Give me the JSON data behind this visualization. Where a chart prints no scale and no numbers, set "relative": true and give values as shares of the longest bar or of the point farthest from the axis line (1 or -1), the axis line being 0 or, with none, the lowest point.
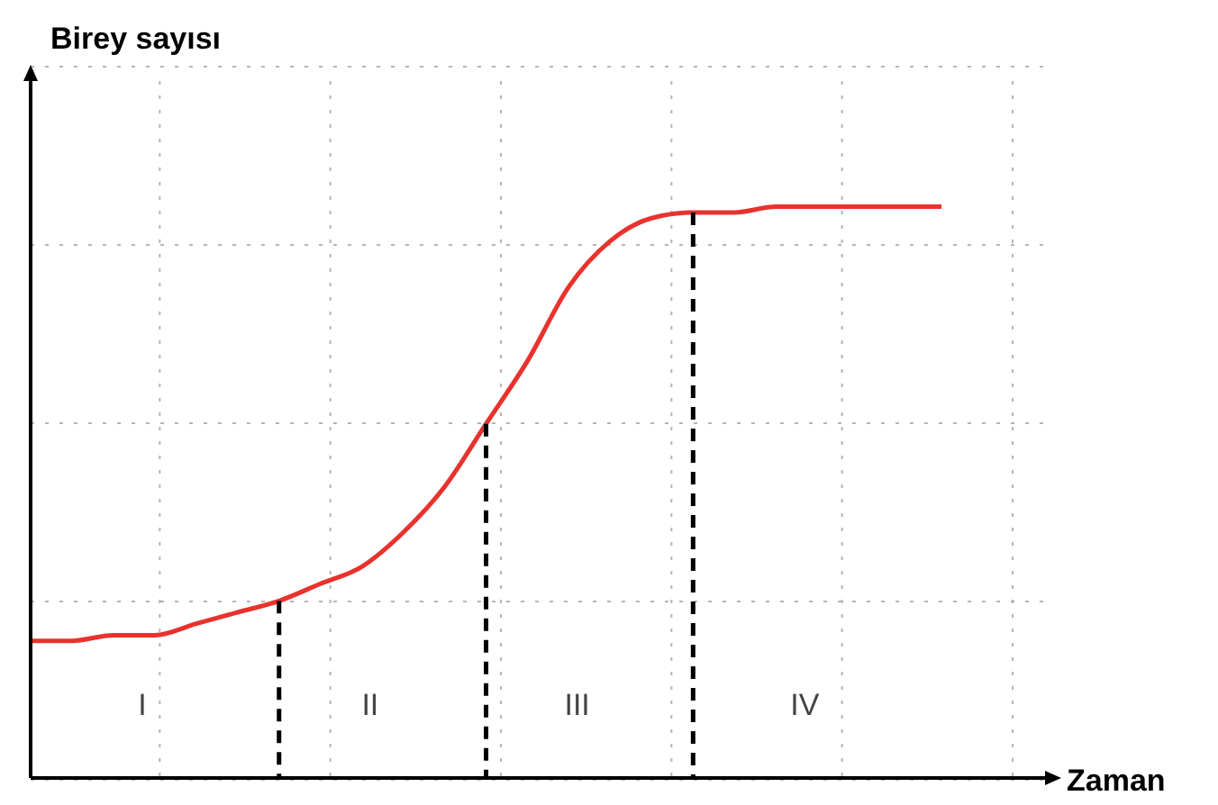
{
  "chart_data": {
    "type": "line",
    "xlabel": "Zaman",
    "ylabel": "Birey sayısı",
    "relative": true,
    "grid": true,
    "marker": "none",
    "line_style": "solid",
    "categories": [
      null,
      null,
      null,
      null,
      null,
      null,
      null,
      null,
      null,
      null,
      null,
      null,
      null,
      null,
      null,
      null,
      null,
      null,
      null,
      null,
      null,
      null,
      null
    ],
    "series": [
      {
        "color": "#e8322d",
        "values": [
          0.24,
          0.24,
          0.25,
          0.25,
          0.27,
          0.29,
          0.31,
          0.34,
          0.37,
          0.43,
          0.51,
          0.62,
          0.73,
          0.86,
          0.94,
          0.98,
          0.99,
          0.99,
          1,
          1,
          1,
          1,
          1
        ]
      }
    ],
    "annotations": [
      "I",
      "II",
      "III",
      "IV"
    ]
  }
}
